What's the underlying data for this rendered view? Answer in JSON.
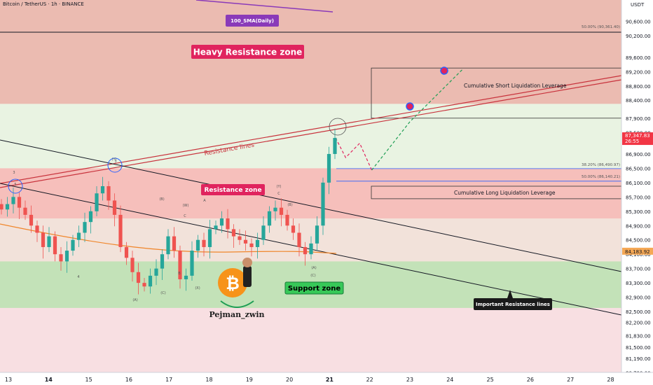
{
  "header": {
    "title": "Bitcoin / TetherUS · 1h · BINANCE",
    "currency": "USDT"
  },
  "chart_data": {
    "type": "candlestick",
    "ylim": [
      80800,
      91200
    ],
    "price_ticks": [
      90600,
      90200,
      89600,
      89200,
      88800,
      88400,
      87900,
      87500,
      86900,
      86500,
      86100,
      85700,
      85300,
      84900,
      84500,
      84100,
      83700,
      83300,
      82900,
      82500,
      82200,
      81830,
      81500,
      81190,
      80790
    ],
    "price_tick_labels": [
      "90,600.00",
      "90,200.00",
      "89,600.00",
      "89,200.00",
      "88,800.00",
      "88,400.00",
      "87,900.00",
      "87,500.00",
      "86,900.00",
      "86,500.00",
      "86,100.00",
      "85,700.00",
      "85,300.00",
      "84,900.00",
      "84,500.00",
      "84,100.00",
      "83,700.00",
      "83,300.00",
      "82,900.00",
      "82,500.00",
      "82,200.00",
      "81,830.00",
      "81,500.00",
      "81,190.00",
      "80,790.00"
    ],
    "x_ticks": [
      "13",
      "14",
      "15",
      "16",
      "17",
      "18",
      "19",
      "20",
      "21",
      "22",
      "23",
      "24",
      "25",
      "26",
      "27",
      "28"
    ],
    "last_price": {
      "value": 87347.83,
      "label": "87,347.83",
      "countdown": "26:55"
    },
    "sma_price": {
      "value": 84183.92,
      "label": "84,183.92"
    },
    "fib_levels": [
      {
        "label": "50.00% (90,361.40)",
        "value": 90361.4
      },
      {
        "label": "38.20% (86,490.97)",
        "value": 86490.97
      },
      {
        "label": "50.00% (86,140.21)",
        "value": 86140.21
      }
    ],
    "zones": [
      {
        "name": "Heavy Resistance zone",
        "from": 88300,
        "to": 91200,
        "color": "#e8b4a8"
      },
      {
        "name": "Resistance zone",
        "from": 85100,
        "to": 86500,
        "color": "#f4b8b4"
      },
      {
        "name": "Support zone",
        "from": 82600,
        "to": 83900,
        "color": "#b9e2b0"
      }
    ],
    "boxes": [
      {
        "label": "Cumulative Short Liquidation Leverage",
        "from": 87900,
        "to": 89300
      },
      {
        "label": "Cumulative Long Liquidation Leverage",
        "from": 85650,
        "to": 86000
      }
    ],
    "annotations": {
      "sma_label": "100_SMA(Daily)",
      "resistance_lines": "Resistance lines",
      "important_resistance": "Important Resistance lines",
      "author": "Pejman_zwin"
    },
    "wave_labels": [
      "3",
      "5",
      "4",
      "3",
      "(B)",
      "(W)",
      "A",
      "C",
      "(A)",
      "(C)",
      "(X)",
      "B",
      "(Y)",
      "C",
      "(B)",
      "(A)",
      "(C)",
      "(Y)"
    ],
    "series_close": [
      85350,
      85500,
      85700,
      85400,
      85200,
      84900,
      84700,
      84300,
      84600,
      84100,
      83900,
      84200,
      84500,
      84700,
      85000,
      85300,
      85800,
      86000,
      85600,
      85200,
      84300,
      84000,
      83600,
      83300,
      83200,
      83500,
      83700,
      84100,
      84600,
      84200,
      83400,
      83500,
      84200,
      84500,
      84300,
      84800,
      84900,
      85100,
      84800,
      84600,
      84500,
      84400,
      84300,
      84500,
      84900,
      85300,
      85400,
      85200,
      84900,
      84700,
      84300,
      84100,
      84400,
      84900,
      86100,
      86900,
      87347.83
    ],
    "projection": [
      {
        "x_day": 21.15,
        "price": 87350
      },
      {
        "x_day": 21.4,
        "price": 86800
      },
      {
        "x_day": 21.75,
        "price": 87200
      },
      {
        "x_day": 22.05,
        "price": 86450
      },
      {
        "x_day": 23.0,
        "price": 87800
      },
      {
        "x_day": 24.3,
        "price": 89250
      }
    ]
  },
  "colors": {
    "bull": "#26a69a",
    "bear": "#ef5350",
    "sma": "#f0862b",
    "sma_daily": "#8a3ab9",
    "last_price_bg": "#f23645",
    "sma_price_bg": "#f5a855",
    "label_pink": "#e0245e",
    "label_dark": "#1a1a1a",
    "support_label_bg": "#37c858"
  }
}
